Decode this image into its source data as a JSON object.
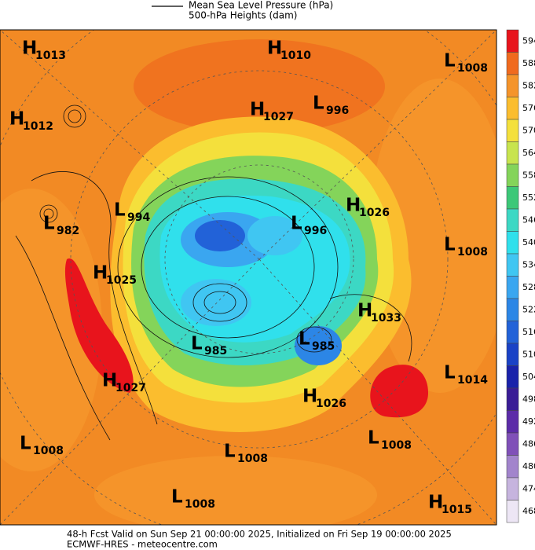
{
  "header": {
    "legend": [
      "Mean Sea Level Pressure (hPa)",
      "500-hPa Heights (dam)"
    ]
  },
  "centers": [
    {
      "letter": "H",
      "value": 1013
    },
    {
      "letter": "H",
      "value": 1010
    },
    {
      "letter": "L",
      "value": 1008
    },
    {
      "letter": "H",
      "value": 1012
    },
    {
      "letter": "H",
      "value": 1027
    },
    {
      "letter": "L",
      "value": 996
    },
    {
      "letter": "H",
      "value": 1026
    },
    {
      "letter": "L",
      "value": 994
    },
    {
      "letter": "L",
      "value": 982
    },
    {
      "letter": "L",
      "value": 996
    },
    {
      "letter": "L",
      "value": 1008
    },
    {
      "letter": "H",
      "value": 1025
    },
    {
      "letter": "H",
      "value": 1033
    },
    {
      "letter": "L",
      "value": 985
    },
    {
      "letter": "L",
      "value": 985
    },
    {
      "letter": "L",
      "value": 1014
    },
    {
      "letter": "H",
      "value": 1027
    },
    {
      "letter": "H",
      "value": 1026
    },
    {
      "letter": "L",
      "value": 1008
    },
    {
      "letter": "L",
      "value": 1008
    },
    {
      "letter": "L",
      "value": 1008
    },
    {
      "letter": "L",
      "value": 1008
    },
    {
      "letter": "H",
      "value": 1015
    }
  ],
  "colorbar": {
    "ticks": [
      594,
      588,
      582,
      576,
      570,
      564,
      558,
      552,
      546,
      540,
      534,
      528,
      522,
      516,
      510,
      504,
      498,
      492,
      486,
      480,
      474,
      468
    ],
    "colors": [
      "#e8141c",
      "#f06a1e",
      "#f5942a",
      "#fbbd2e",
      "#f4e03c",
      "#c8e44e",
      "#84d45a",
      "#3cc878",
      "#3cd8c4",
      "#30e0ec",
      "#40c6f2",
      "#3aa6f0",
      "#2c86e6",
      "#2262d8",
      "#1a42c6",
      "#1a22aa",
      "#3a1c96",
      "#5c2ca8",
      "#8050b8",
      "#a284cc",
      "#c6b4de",
      "#ede6f5"
    ]
  },
  "footer": [
    "48-h Fcst Valid on Sun Sep 21 00:00:00 2025, Initialized on Fri Sep 19 00:00:00 2025",
    "ECMWF-HRES  - meteocentre.com"
  ]
}
